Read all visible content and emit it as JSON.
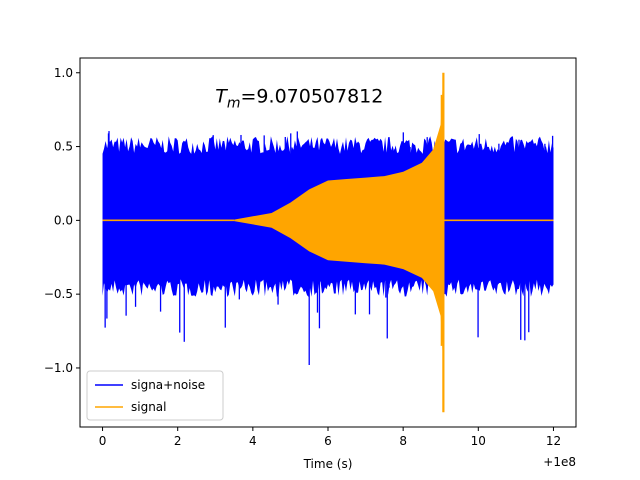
{
  "chart_data": {
    "type": "line",
    "title": "",
    "xlabel": "Time (s)",
    "ylabel": "",
    "x_offset_label": "+1e8",
    "xlim": [
      -0.6,
      12.6
    ],
    "ylim": [
      -1.4,
      1.1
    ],
    "x_ticks": [
      0,
      2,
      4,
      6,
      8,
      10,
      12
    ],
    "x_tick_labels": [
      "0",
      "2",
      "4",
      "6",
      "8",
      "10",
      "12"
    ],
    "y_ticks": [
      -1.0,
      -0.5,
      0.0,
      0.5,
      1.0
    ],
    "y_tick_labels": [
      "−1.0",
      "−0.5",
      "0.0",
      "0.5",
      "1.0"
    ],
    "grid": false,
    "legend_position": "lower-left",
    "annotation": {
      "text_main": "T",
      "text_sub": "m",
      "text_value": "=9.070507812",
      "x": 3.0,
      "y": 0.8
    },
    "series": [
      {
        "name": "signa+noise",
        "color": "#0000ff",
        "x_range": [
          0,
          12
        ],
        "noise_band": [
          -0.4,
          0.45
        ],
        "noise_spikes": [
          -0.98,
          0.62
        ]
      },
      {
        "name": "signal",
        "color": "#ffa500",
        "x_range": [
          0,
          12
        ],
        "envelope": [
          {
            "t": 0.0,
            "a": 0.0
          },
          {
            "t": 3.5,
            "a": 0.005
          },
          {
            "t": 4.5,
            "a": 0.05
          },
          {
            "t": 5.0,
            "a": 0.12
          },
          {
            "t": 5.5,
            "a": 0.21
          },
          {
            "t": 6.0,
            "a": 0.27
          },
          {
            "t": 6.5,
            "a": 0.28
          },
          {
            "t": 7.0,
            "a": 0.29
          },
          {
            "t": 7.5,
            "a": 0.3
          },
          {
            "t": 8.0,
            "a": 0.33
          },
          {
            "t": 8.5,
            "a": 0.39
          },
          {
            "t": 8.8,
            "a": 0.48
          },
          {
            "t": 9.0,
            "a": 0.65
          },
          {
            "t": 9.07,
            "a": 1.0
          }
        ],
        "peak_max": 1.0,
        "peak_min": -1.3,
        "merger_time": 9.0705
      }
    ]
  }
}
